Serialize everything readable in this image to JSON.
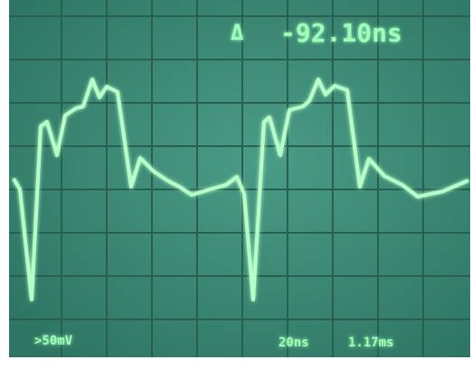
{
  "readouts": {
    "cursor_delta": "-92.10ns",
    "channel_scale": ">50mV",
    "time_base": "20ns",
    "delay": "1.17ms"
  }
}
